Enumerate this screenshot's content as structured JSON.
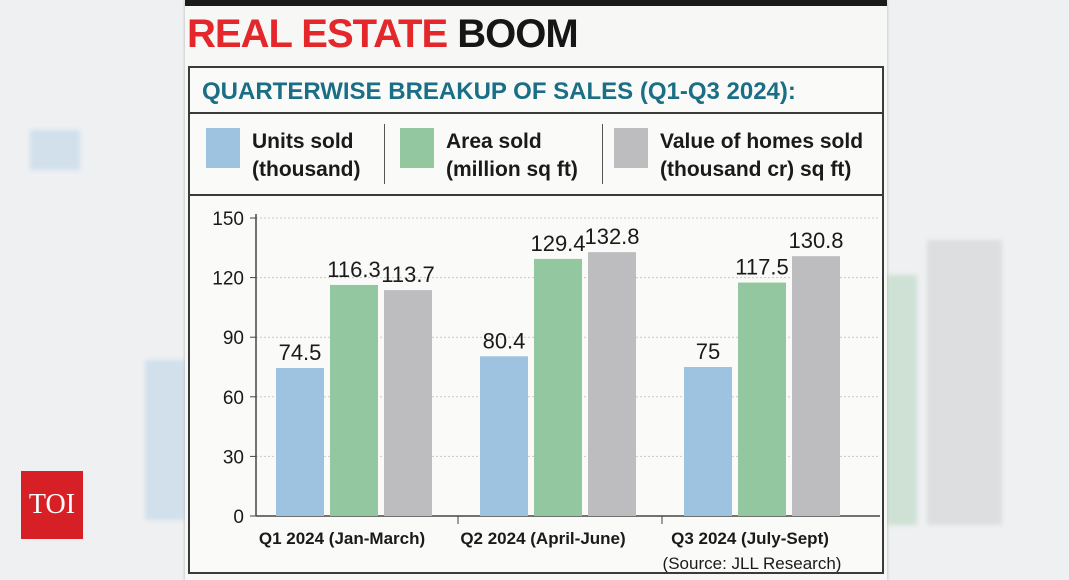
{
  "headline": {
    "part1": "REAL ESTATE",
    "part2": "BOOM"
  },
  "subtitle": "QUARTERWISE BREAKUP OF SALES (Q1-Q3 2024):",
  "legend": [
    {
      "line1": "Units sold",
      "line2": "(thousand)",
      "color": "#9dc3e0"
    },
    {
      "line1": "Area sold",
      "line2": "(million sq ft)",
      "color": "#93c79f"
    },
    {
      "line1": "Value of homes sold",
      "line2": "(thousand cr) sq ft)",
      "color": "#bdbdc0"
    }
  ],
  "source": "(Source: JLL Research)",
  "logo": "TOI",
  "chart_data": {
    "type": "bar",
    "categories": [
      "Q1 2024 (Jan-March)",
      "Q2 2024 (April-June)",
      "Q3 2024 (July-Sept)"
    ],
    "series": [
      {
        "name": "Units sold (thousand)",
        "values": [
          74.5,
          80.4,
          75
        ],
        "labels": [
          "74.5",
          "80.4",
          "75"
        ],
        "color": "#9dc3e0"
      },
      {
        "name": "Area sold (million sq ft)",
        "values": [
          116.3,
          129.4,
          117.5
        ],
        "labels": [
          "116.3",
          "129.4",
          "117.5"
        ],
        "color": "#93c79f"
      },
      {
        "name": "Value of homes sold (thousand cr) sq ft)",
        "values": [
          113.7,
          132.8,
          130.8
        ],
        "labels": [
          "113.7",
          "132.8",
          "130.8"
        ],
        "color": "#bdbdc0"
      }
    ],
    "yticks": [
      "0",
      "30",
      "60",
      "90",
      "120",
      "150"
    ],
    "ylim": [
      0,
      150
    ],
    "grid": true,
    "title": "QUARTERWISE BREAKUP OF SALES (Q1-Q3 2024):"
  }
}
